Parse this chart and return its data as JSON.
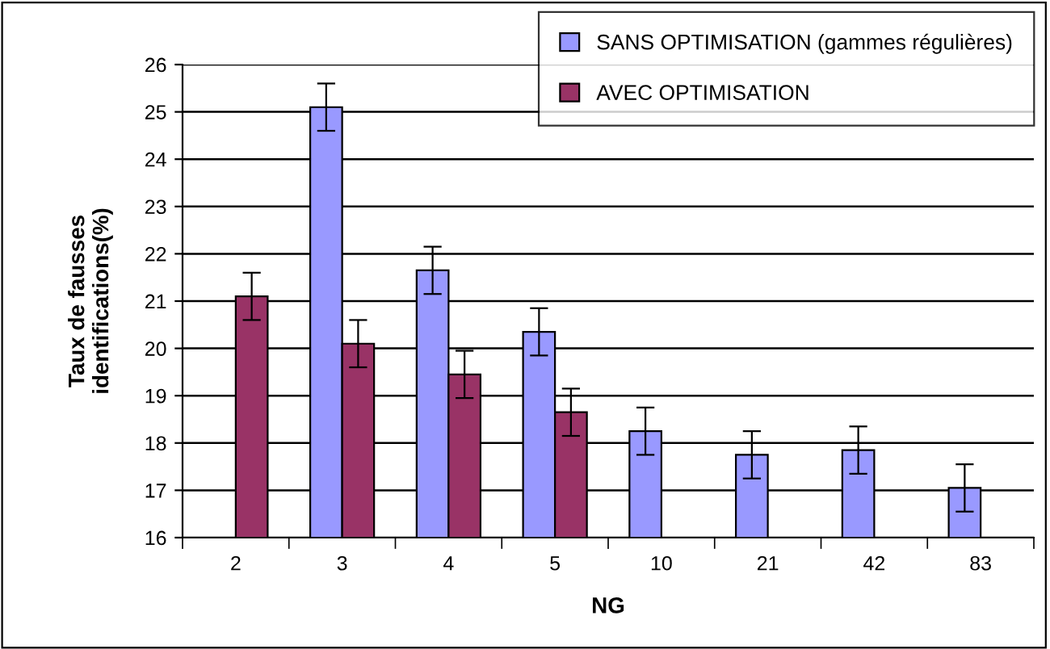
{
  "chart_data": {
    "type": "bar",
    "xlabel": "NG",
    "ylabel": "Taux de fausses\nidentifications(%)",
    "categories": [
      "2",
      "3",
      "4",
      "5",
      "10",
      "21",
      "42",
      "83"
    ],
    "series": [
      {
        "name": "SANS OPTIMISATION (gammes régulières)",
        "color": "#9999ff",
        "values": [
          null,
          25.1,
          21.65,
          20.35,
          18.25,
          17.75,
          17.85,
          17.05
        ],
        "errors": [
          null,
          0.5,
          0.5,
          0.5,
          0.5,
          0.5,
          0.5,
          0.5
        ]
      },
      {
        "name": "AVEC OPTIMISATION",
        "color": "#993366",
        "values": [
          21.1,
          20.1,
          19.45,
          18.65,
          null,
          null,
          null,
          null
        ],
        "errors": [
          0.5,
          0.5,
          0.5,
          0.5,
          null,
          null,
          null,
          null
        ]
      }
    ],
    "ylim": [
      16,
      26
    ],
    "yticks": [
      16,
      17,
      18,
      19,
      20,
      21,
      22,
      23,
      24,
      25,
      26
    ],
    "grid": "y",
    "legend": "top right"
  }
}
